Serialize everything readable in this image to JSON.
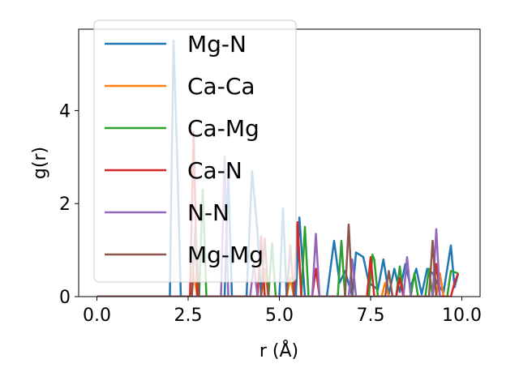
{
  "chart_data": {
    "type": "line",
    "title": "",
    "xlabel": "r (Å)",
    "ylabel": "g(r)",
    "xlim": [
      -0.5,
      10.5
    ],
    "ylim": [
      0,
      5.75
    ],
    "xticks": [
      {
        "value": 0.0,
        "label": "0.0"
      },
      {
        "value": 2.5,
        "label": "2.5"
      },
      {
        "value": 5.0,
        "label": "5.0"
      },
      {
        "value": 7.5,
        "label": "7.5"
      },
      {
        "value": 10.0,
        "label": "10.0"
      }
    ],
    "yticks": [
      {
        "value": 0,
        "label": "0"
      },
      {
        "value": 2,
        "label": "2"
      },
      {
        "value": 4,
        "label": "4"
      }
    ],
    "grid": false,
    "legend_position": "top-left",
    "series": [
      {
        "name": "Mg-N",
        "color": "#1f77b4",
        "x": [
          0,
          2.0,
          2.05,
          2.1,
          2.2,
          2.3,
          3.5,
          3.6,
          3.7,
          4.1,
          4.25,
          4.4,
          4.5,
          5.0,
          5.1,
          5.2,
          5.45,
          5.55,
          5.7,
          6.3,
          6.5,
          6.65,
          6.8,
          7.0,
          7.1,
          7.2,
          7.3,
          7.45,
          7.7,
          7.85,
          8.0,
          8.15,
          8.3,
          8.45,
          8.6,
          8.75,
          8.9,
          9.05,
          9.2,
          9.35,
          9.5,
          9.7,
          9.8,
          9.9
        ],
        "y": [
          0,
          0,
          3.0,
          5.5,
          3.0,
          0,
          0,
          2.6,
          0,
          0,
          2.7,
          1.4,
          0,
          0,
          1.9,
          0,
          0,
          1.7,
          0,
          0,
          1.2,
          0.3,
          0.55,
          0,
          0.95,
          0.9,
          0.85,
          0.3,
          0.15,
          0.8,
          0.05,
          0.6,
          0.1,
          0.7,
          0.2,
          0.6,
          0.05,
          0.6,
          0.5,
          0.25,
          0.1,
          1.1,
          0.2,
          0.5
        ]
      },
      {
        "name": "Ca-Ca",
        "color": "#ff7f0e",
        "x": [
          0,
          2.6,
          2.65,
          2.75,
          4.5,
          4.6,
          4.7,
          5.2,
          5.3,
          5.4,
          7.8,
          7.9,
          8.0,
          9.3,
          9.4,
          9.5
        ],
        "y": [
          0,
          0,
          0.5,
          0,
          0,
          0.6,
          0,
          0,
          0.4,
          0,
          0,
          0.3,
          0,
          0,
          0.5,
          0
        ]
      },
      {
        "name": "Ca-Mg",
        "color": "#2ca02c",
        "x": [
          0,
          2.8,
          2.9,
          3.0,
          4.7,
          4.8,
          4.9,
          5.6,
          5.7,
          5.8,
          6.6,
          6.7,
          6.8,
          7.45,
          7.55,
          7.6,
          7.7,
          8.2,
          8.3,
          8.4,
          8.6,
          8.7,
          8.8,
          9.0,
          9.1,
          9.2,
          9.6,
          9.7,
          9.9
        ],
        "y": [
          0,
          0,
          2.3,
          0,
          0,
          1.15,
          0,
          0,
          1.5,
          0,
          0,
          1.2,
          0,
          0,
          0.9,
          0.8,
          0,
          0,
          0.65,
          0,
          0,
          0.5,
          0,
          0,
          0.6,
          0,
          0,
          0.55,
          0.5
        ]
      },
      {
        "name": "Ca-N",
        "color": "#d62728",
        "x": [
          0,
          2.55,
          2.65,
          2.75,
          4.4,
          4.5,
          4.6,
          5.4,
          5.5,
          5.6,
          5.9,
          6.0,
          6.1,
          7.4,
          7.5,
          7.6,
          8.2,
          8.3,
          8.4,
          9.2,
          9.3,
          9.4,
          9.7,
          9.8,
          9.9
        ],
        "y": [
          0,
          0,
          3.55,
          0,
          0,
          1.3,
          0,
          0,
          1.6,
          0,
          0,
          0.6,
          0,
          0,
          0.85,
          0,
          0,
          0.4,
          0,
          0,
          0.7,
          0,
          0,
          0.3,
          0.5
        ]
      },
      {
        "name": "N-N",
        "color": "#9467bd",
        "x": [
          0,
          3.4,
          3.5,
          3.6,
          4.2,
          4.3,
          4.4,
          5.9,
          6.0,
          6.1,
          6.9,
          7.0,
          7.1,
          8.4,
          8.5,
          8.6,
          9.2,
          9.3,
          9.4
        ],
        "y": [
          0,
          0,
          3.0,
          0,
          0,
          0.7,
          0,
          0,
          1.35,
          0,
          0,
          0.8,
          0,
          0,
          0.85,
          0,
          0,
          1.45,
          0
        ]
      },
      {
        "name": "Mg-Mg",
        "color": "#8c564b",
        "x": [
          0,
          2.6,
          2.7,
          2.8,
          4.5,
          4.6,
          4.7,
          5.2,
          5.3,
          5.4,
          6.8,
          6.9,
          7.0,
          7.9,
          8.0,
          8.1,
          9.1,
          9.2,
          9.3
        ],
        "y": [
          0,
          0,
          1.5,
          0,
          0,
          1.25,
          0,
          0,
          1.1,
          0,
          0,
          1.55,
          0,
          0,
          0.55,
          0,
          0,
          1.2,
          0
        ]
      }
    ]
  }
}
